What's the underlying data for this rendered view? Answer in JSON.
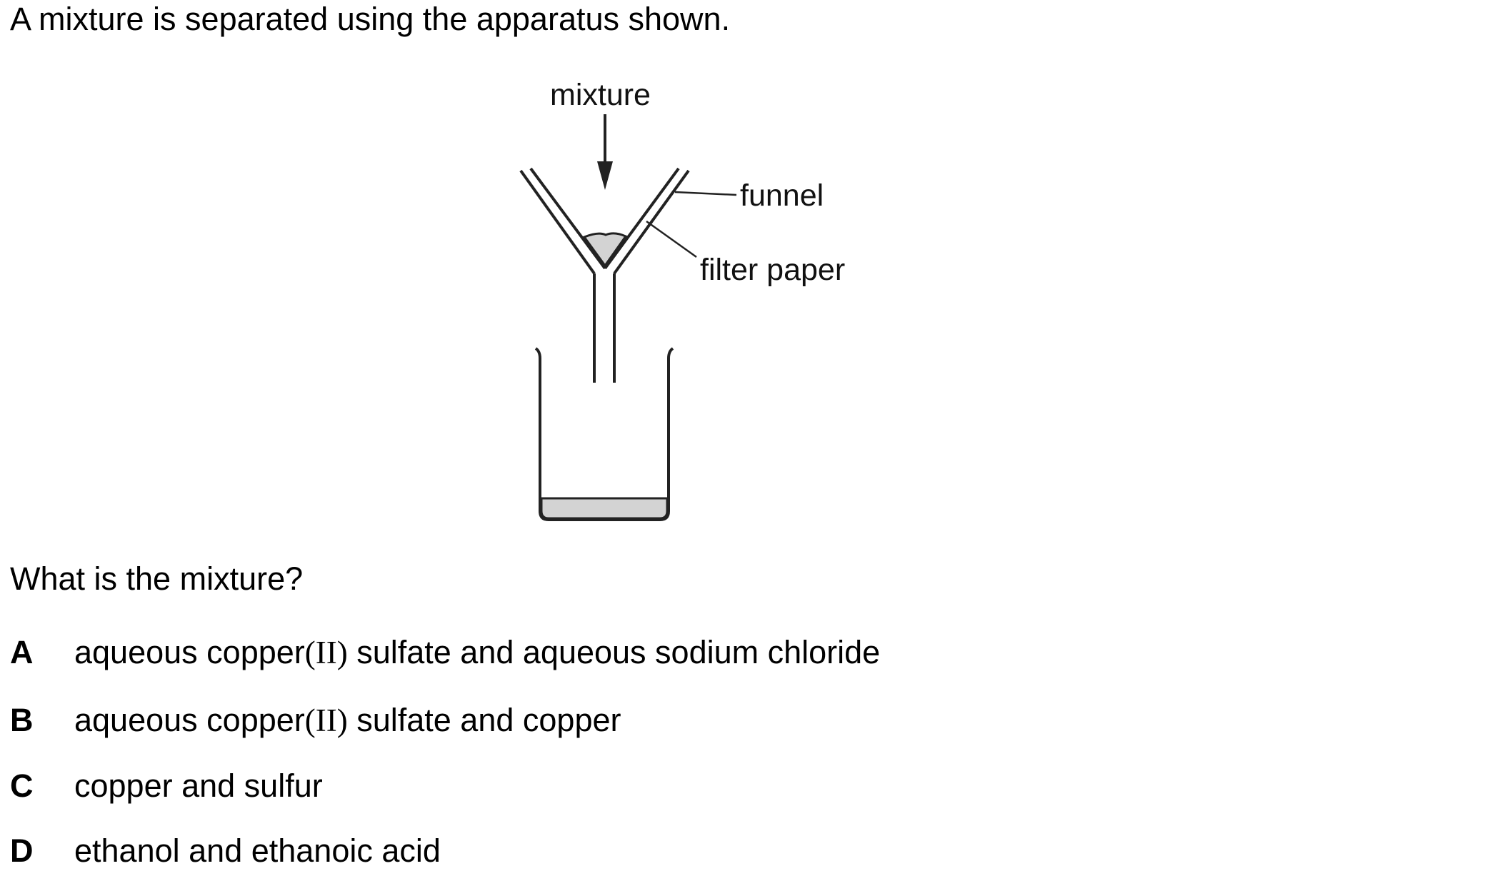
{
  "stem": "A mixture is separated using the apparatus shown.",
  "diagram": {
    "labels": {
      "mixture": "mixture",
      "funnel": "funnel",
      "filter_paper": "filter paper"
    },
    "colors": {
      "line": "#222222",
      "residue": "#d3d3d3",
      "filtrate": "#d3d3d3"
    }
  },
  "question": "What is the mixture?",
  "options": [
    {
      "letter": "A",
      "before": "aqueous copper",
      "ox": "(II)",
      "after": " sulfate and aqueous sodium chloride"
    },
    {
      "letter": "B",
      "before": "aqueous copper",
      "ox": "(II)",
      "after": " sulfate and copper"
    },
    {
      "letter": "C",
      "text": "copper and sulfur"
    },
    {
      "letter": "D",
      "text": "ethanol and ethanoic acid"
    }
  ]
}
